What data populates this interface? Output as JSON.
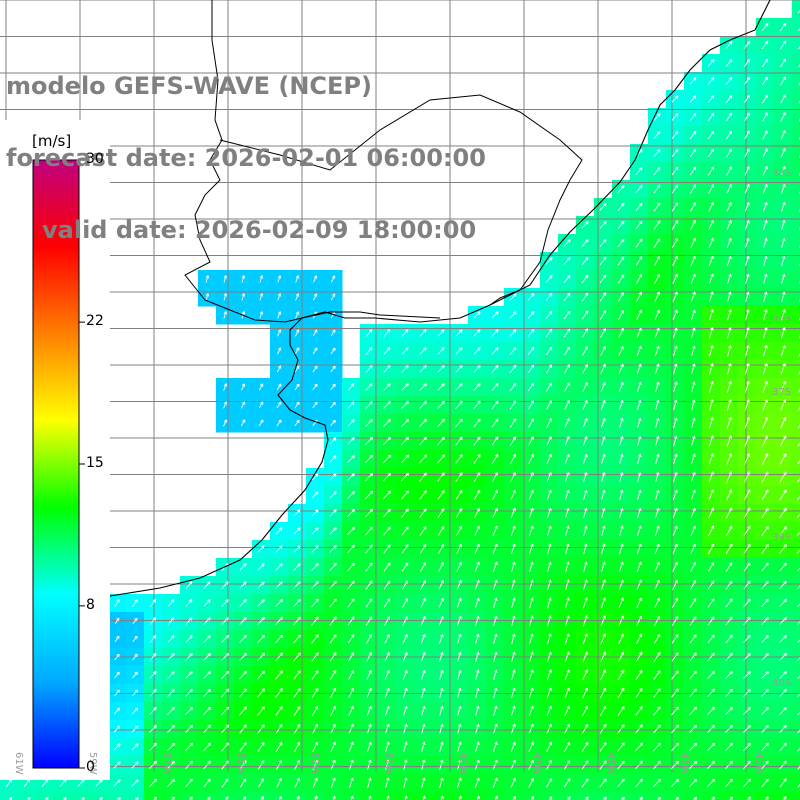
{
  "header": {
    "model_line": "modelo GEFS-WAVE (NCEP)",
    "forecast_line": "forecast date: 2026-02-01 06:00:00",
    "valid_line": "valid date: 2026-02-09 18:00:00"
  },
  "colorbar": {
    "unit": "[m/s]",
    "ticks": [
      {
        "label": "30",
        "value": 30
      },
      {
        "label": "22",
        "value": 22
      },
      {
        "label": "15",
        "value": 15
      },
      {
        "label": "8",
        "value": 8
      },
      {
        "label": "0",
        "value": 0
      }
    ],
    "range": [
      0,
      30
    ],
    "stops": [
      "#0000ff",
      "#00aaff",
      "#00ffff",
      "#00ff00",
      "#ffff00",
      "#ff7f00",
      "#ff0000",
      "#c00080"
    ]
  },
  "grid": {
    "lon_labels": [
      "61W",
      "59W",
      "57W",
      "55W",
      "53W",
      "51W",
      "49W",
      "47W",
      "45W",
      "43W",
      "41W"
    ],
    "lat_labels": [
      "33S",
      "35S",
      "37S",
      "39S",
      "40S"
    ],
    "line_color": "#808080"
  },
  "chart_data": {
    "type": "heatmap",
    "variable": "wind speed",
    "units": "m/s",
    "value_range": [
      0,
      30
    ],
    "field_range_estimate": [
      6,
      14
    ],
    "regions": [
      {
        "area": "estuary",
        "speed_estimate": 6
      },
      {
        "area": "coastal shelf",
        "speed_estimate": 9
      },
      {
        "area": "offshore",
        "speed_estimate": 12
      }
    ],
    "dominant_wind_direction": "NE"
  }
}
